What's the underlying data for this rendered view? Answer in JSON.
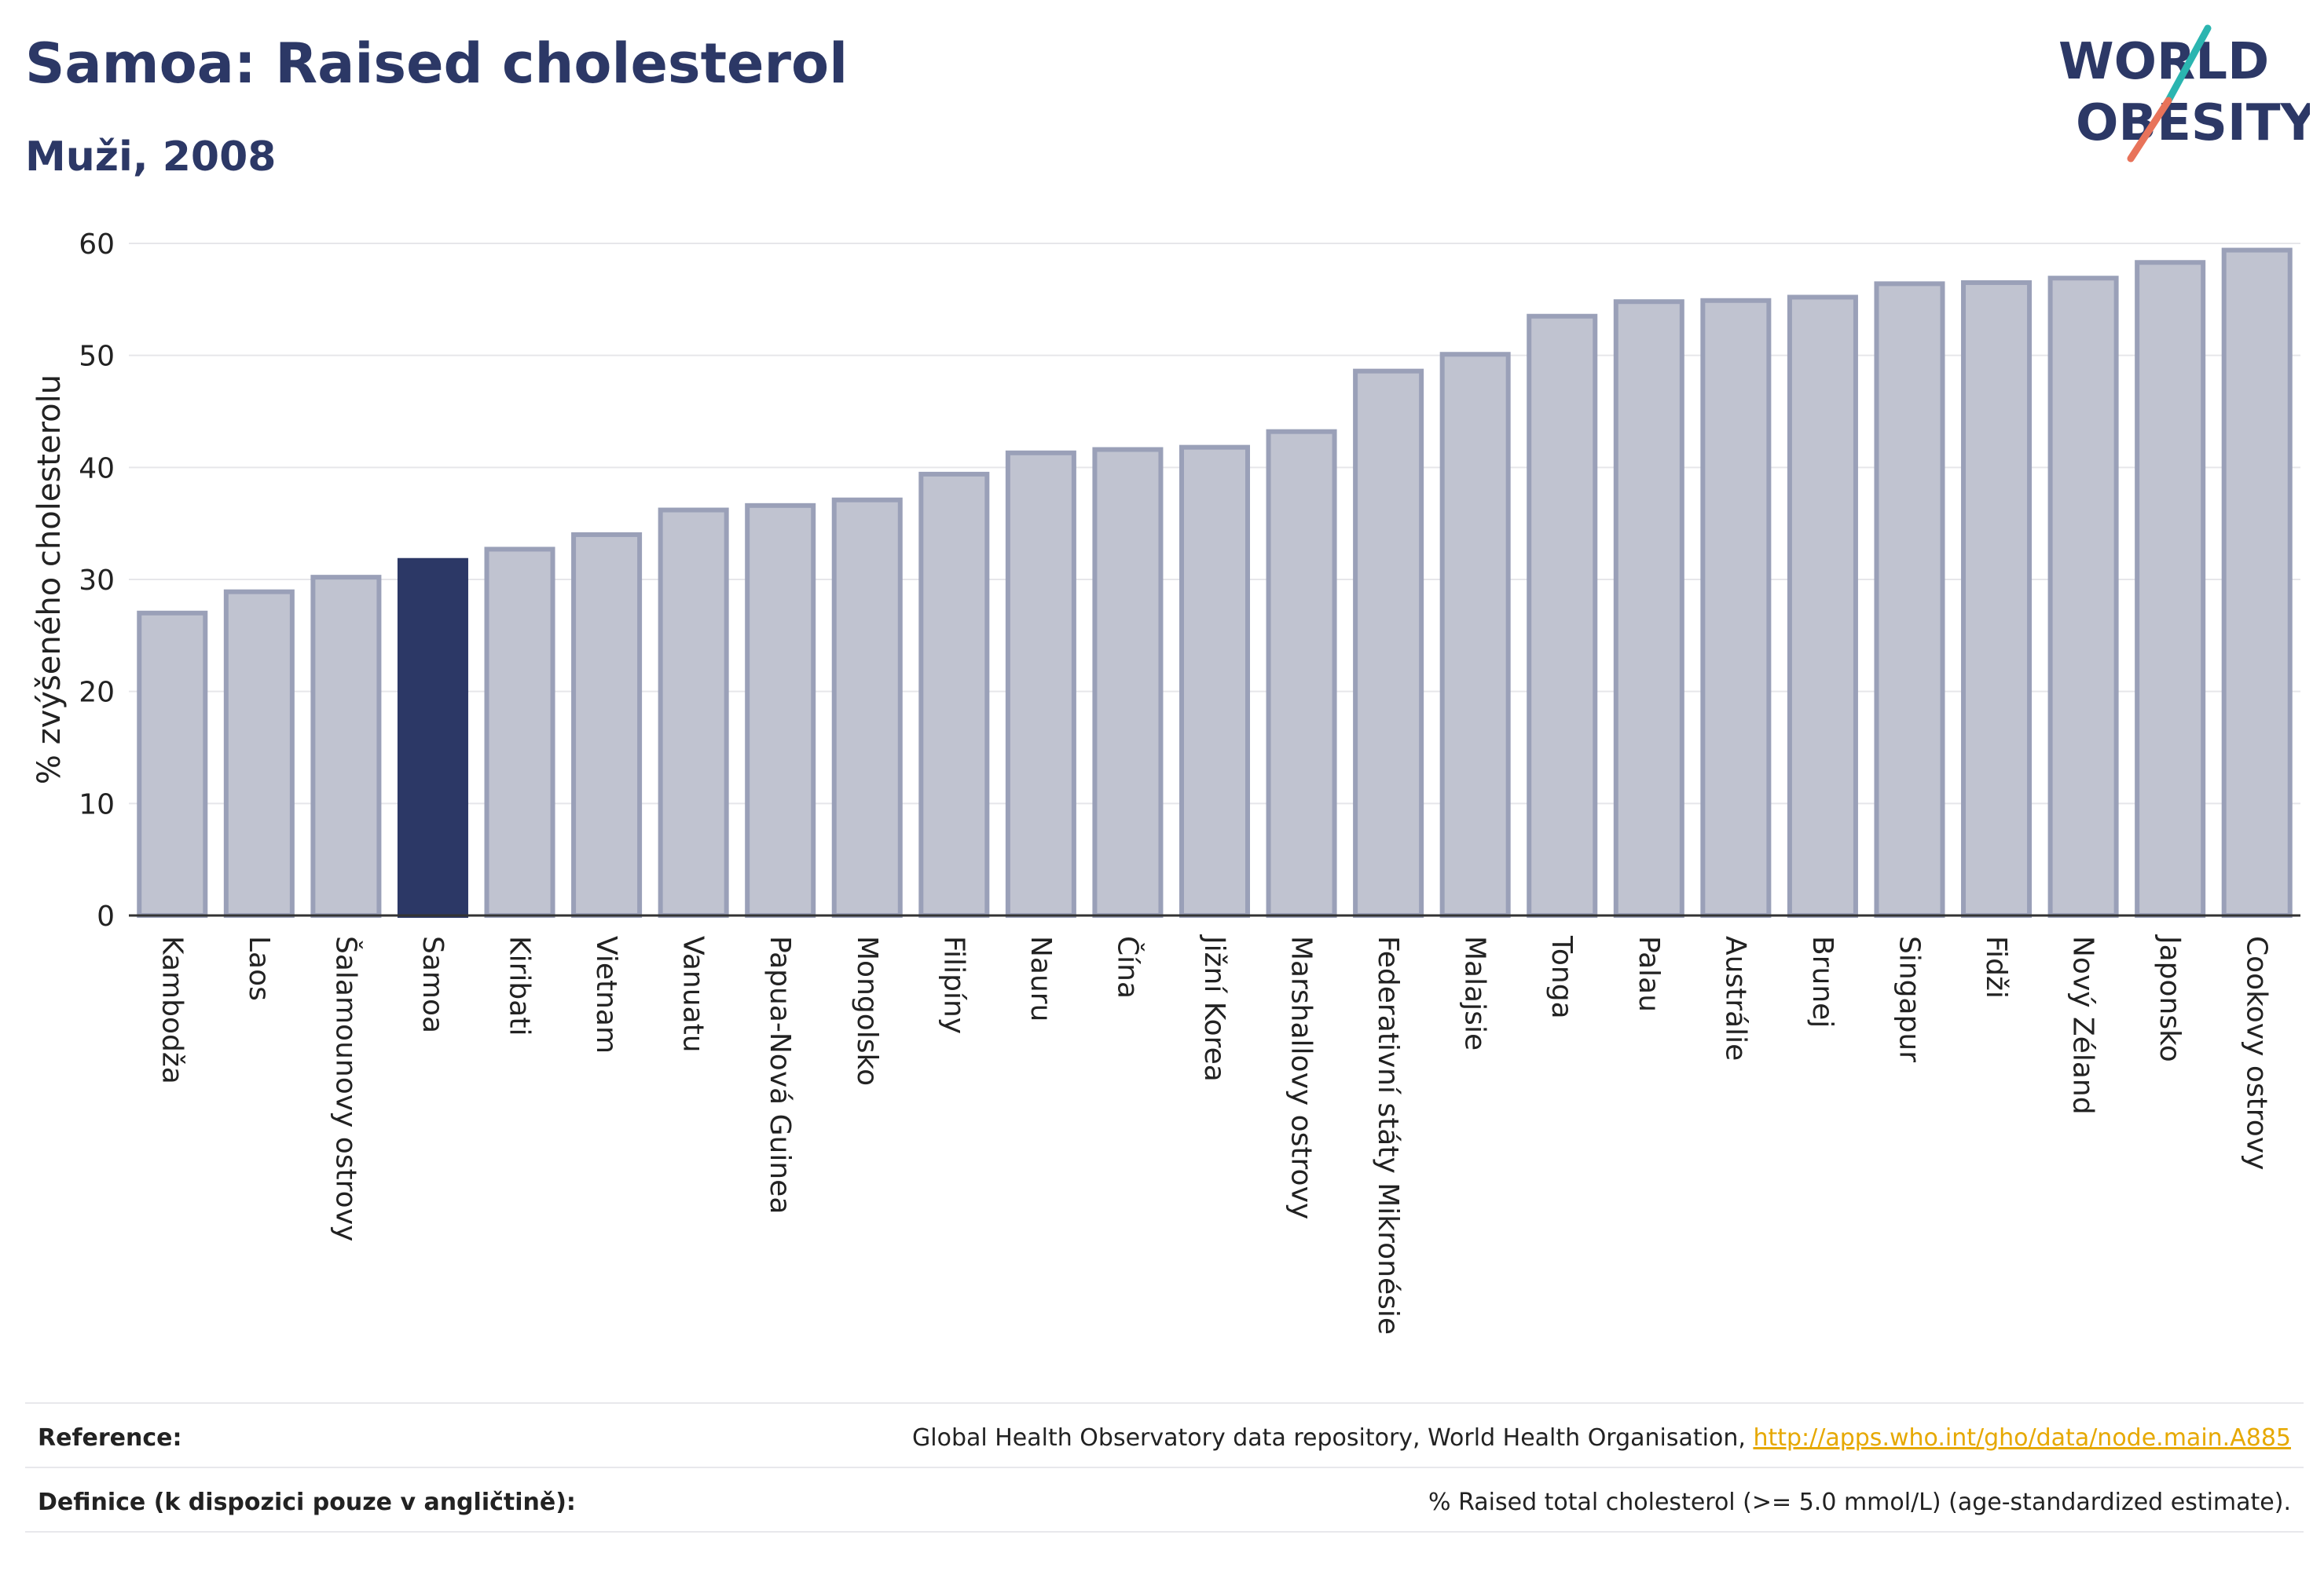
{
  "header": {
    "title": "Samoa: Raised cholesterol",
    "subtitle": "Muži, 2008"
  },
  "logo": {
    "line1": "WORLD",
    "line2": "OBESITY"
  },
  "chart_data": {
    "type": "bar",
    "ylabel": "% zvýšeného cholesterolu",
    "ylim": [
      0,
      60
    ],
    "yticks": [
      0,
      10,
      20,
      30,
      40,
      50,
      60
    ],
    "grid": true,
    "highlight": "Samoa",
    "colors": {
      "bar": "#c0c3d0",
      "bar_edge": "#9aa0b8",
      "highlight": "#2c3866"
    },
    "categories": [
      "Kambodža",
      "Laos",
      "Šalamounovy ostrovy",
      "Samoa",
      "Kiribati",
      "Vietnam",
      "Vanuatu",
      "Papua-Nová Guinea",
      "Mongolsko",
      "Filipíny",
      "Nauru",
      "Čína",
      "Jižní Korea",
      "Marshallovy ostrovy",
      "Federativní státy Mikronésie",
      "Malajsie",
      "Tonga",
      "Palau",
      "Austrálie",
      "Brunej",
      "Singapur",
      "Fidži",
      "Nový Zéland",
      "Japonsko",
      "Cookovy ostrovy"
    ],
    "values": [
      27.0,
      28.9,
      30.2,
      31.7,
      32.7,
      34.0,
      36.2,
      36.6,
      37.1,
      39.4,
      41.3,
      41.6,
      41.8,
      43.2,
      48.6,
      50.1,
      53.5,
      54.8,
      54.9,
      55.2,
      56.4,
      56.5,
      56.9,
      58.3,
      59.4
    ]
  },
  "footer": {
    "reference_label": "Reference:",
    "reference_text": "Global Health Observatory data repository, World Health Organisation, ",
    "reference_link": "http://apps.who.int/gho/data/node.main.A885",
    "definition_label": "Definice (k dispozici pouze v angličtině):",
    "definition_text": "% Raised total cholesterol (>= 5.0 mmol/L) (age-standardized estimate)."
  }
}
